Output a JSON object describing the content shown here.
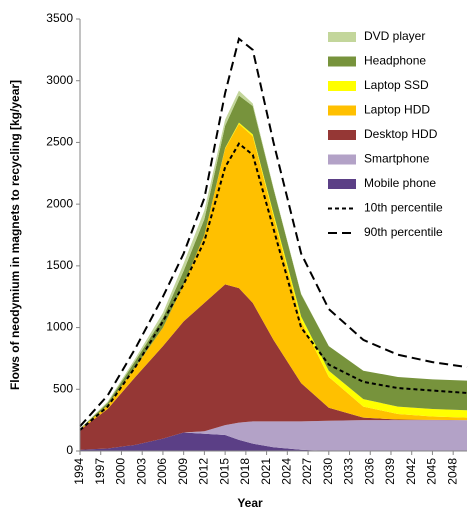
{
  "chart_data": {
    "type": "stacked-area",
    "x_label": "Year",
    "y_label": "Flows of neodymium in magnets to recycling [kg/year]",
    "x": [
      1994,
      1998,
      2002,
      2006,
      2009,
      2012,
      2015,
      2017,
      2019,
      2022,
      2026,
      2030,
      2035,
      2040,
      2045,
      2050
    ],
    "xlim": [
      1994,
      2050
    ],
    "xticks": [
      1994,
      1997,
      2000,
      2003,
      2006,
      2009,
      2012,
      2015,
      2018,
      2021,
      2024,
      2027,
      2030,
      2033,
      2036,
      2039,
      2042,
      2045,
      2048
    ],
    "ylim": [
      0,
      3500
    ],
    "yticks": [
      0,
      500,
      1000,
      1500,
      2000,
      2500,
      3000,
      3500
    ],
    "legend": "upper right",
    "series": [
      {
        "name": "Mobile phone",
        "color": "#5b3f86",
        "kind": "area",
        "values": [
          10,
          20,
          50,
          100,
          150,
          140,
          130,
          90,
          60,
          30,
          10,
          0,
          0,
          0,
          0,
          0
        ]
      },
      {
        "name": "Smartphone",
        "color": "#b3a2c7",
        "kind": "area",
        "values": [
          0,
          0,
          0,
          0,
          0,
          20,
          80,
          140,
          180,
          210,
          230,
          245,
          250,
          250,
          250,
          250
        ]
      },
      {
        "name": "Desktop HDD",
        "color": "#953735",
        "kind": "area",
        "values": [
          160,
          320,
          550,
          750,
          900,
          1040,
          1140,
          1090,
          960,
          660,
          310,
          105,
          20,
          5,
          2,
          0
        ]
      },
      {
        "name": "Laptop HDD",
        "color": "#ffc000",
        "kind": "area",
        "values": [
          5,
          30,
          80,
          150,
          300,
          550,
          1100,
          1330,
          1350,
          1000,
          500,
          250,
          90,
          45,
          28,
          20
        ]
      },
      {
        "name": "Laptop SSD",
        "color": "#ffff00",
        "kind": "area",
        "values": [
          0,
          0,
          0,
          0,
          0,
          0,
          5,
          10,
          15,
          25,
          40,
          50,
          60,
          60,
          60,
          60
        ]
      },
      {
        "name": "Headphone",
        "color": "#77933c",
        "kind": "area",
        "values": [
          5,
          20,
          50,
          80,
          110,
          130,
          180,
          220,
          230,
          200,
          180,
          200,
          230,
          240,
          240,
          240
        ]
      },
      {
        "name": "DVD player",
        "color": "#c3d69b",
        "kind": "area",
        "values": [
          0,
          10,
          20,
          40,
          60,
          70,
          50,
          40,
          20,
          10,
          5,
          0,
          0,
          0,
          0,
          0
        ]
      },
      {
        "name": "10th percentile",
        "color": "#000000",
        "kind": "line",
        "dash": "short",
        "values": [
          170,
          360,
          680,
          1050,
          1350,
          1700,
          2300,
          2490,
          2400,
          1800,
          1000,
          700,
          560,
          510,
          490,
          470
        ]
      },
      {
        "name": "90th percentile",
        "color": "#000000",
        "kind": "line",
        "dash": "long",
        "values": [
          200,
          450,
          830,
          1250,
          1600,
          2050,
          2900,
          3340,
          3250,
          2500,
          1600,
          1150,
          900,
          780,
          720,
          680
        ]
      }
    ]
  }
}
